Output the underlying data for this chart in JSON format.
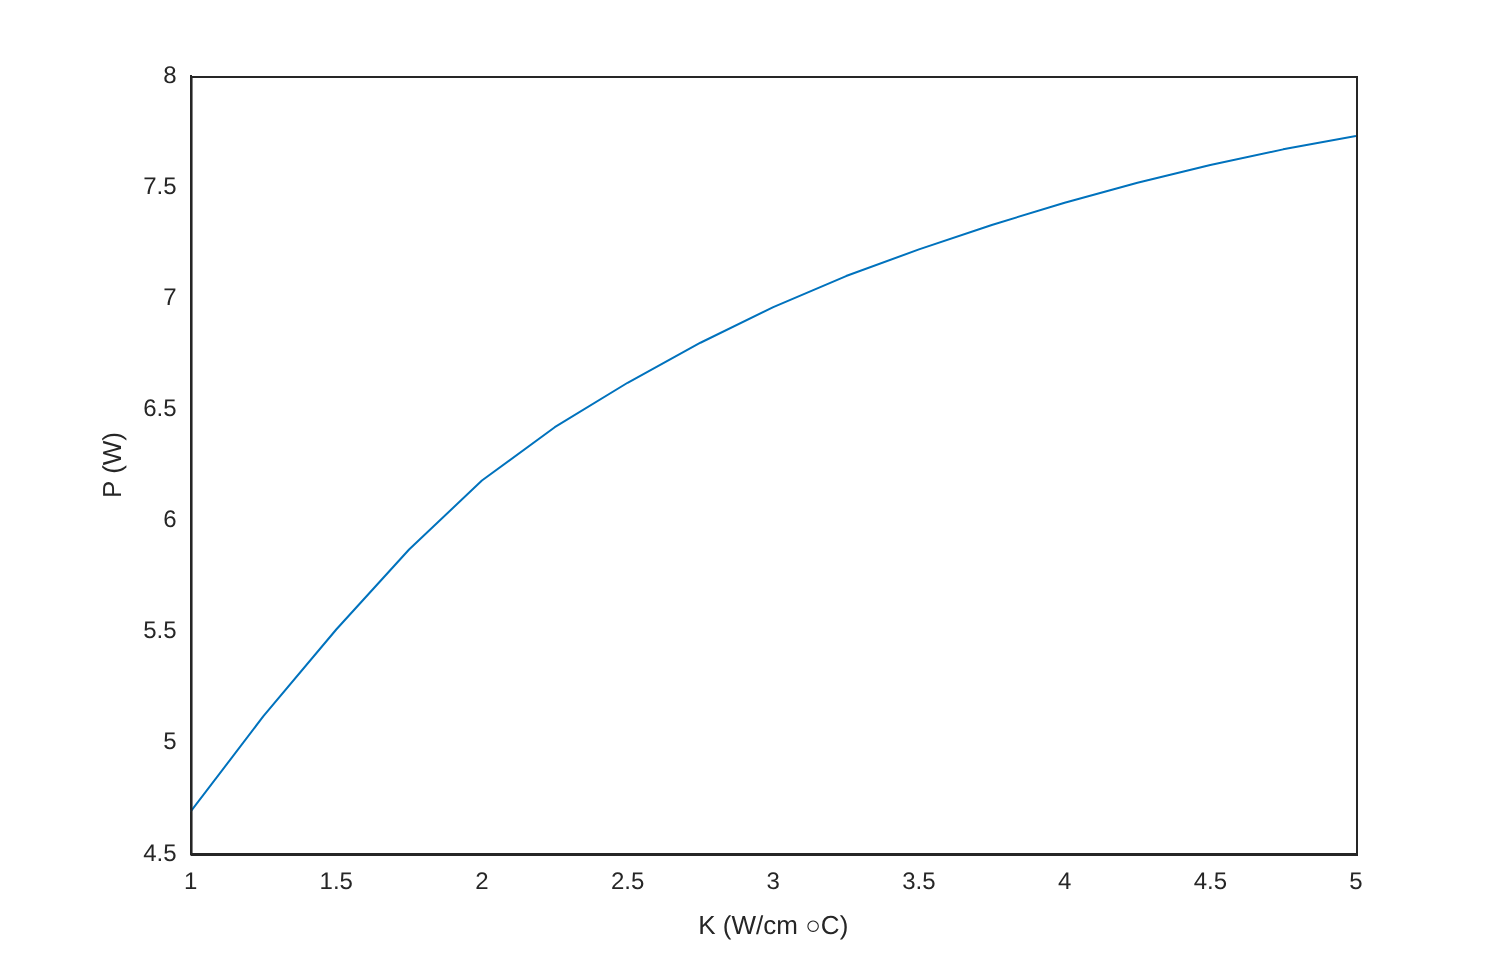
{
  "chart_data": {
    "type": "line",
    "xlabel": "K (W/cm ○C)",
    "ylabel": "P (W)",
    "x": [
      1,
      1.25,
      1.5,
      1.75,
      2,
      2.25,
      2.5,
      2.75,
      3,
      3.25,
      3.5,
      3.75,
      4,
      4.25,
      4.5,
      4.75,
      5
    ],
    "series": [
      {
        "color": "#0072bd",
        "values": [
          4.69,
          5.12,
          5.51,
          5.87,
          6.18,
          6.42,
          6.62,
          6.8,
          6.96,
          7.1,
          7.22,
          7.33,
          7.43,
          7.52,
          7.6,
          7.67,
          7.73
        ]
      }
    ],
    "xlim": [
      1,
      5
    ],
    "xticks": [
      1,
      1.5,
      2,
      2.5,
      3,
      3.5,
      4,
      4.5,
      5
    ],
    "ylim": [
      4.5,
      8
    ],
    "yticks": [
      4.5,
      5,
      5.5,
      6,
      6.5,
      7,
      7.5,
      8
    ],
    "grid": false,
    "legend": false,
    "marker": "none",
    "line_style": "solid"
  }
}
